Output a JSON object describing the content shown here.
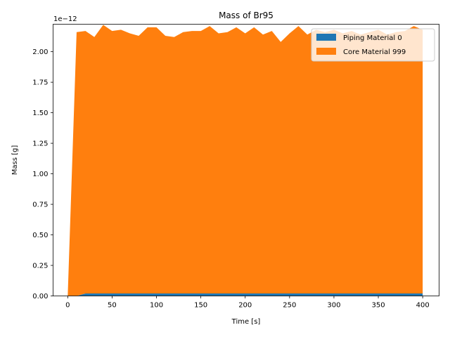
{
  "chart_data": {
    "type": "area",
    "stacked": true,
    "title": "Mass of Br95",
    "xlabel": "Time [s]",
    "ylabel": "Mass [g]",
    "y_offset_text": "1e−12",
    "xlim": [
      -16.5,
      418.5
    ],
    "ylim": [
      0,
      2.225
    ],
    "x_ticks": [
      0,
      50,
      100,
      150,
      200,
      250,
      300,
      350,
      400
    ],
    "x_tick_labels": [
      "0",
      "50",
      "100",
      "150",
      "200",
      "250",
      "300",
      "350",
      "400"
    ],
    "y_ticks": [
      0,
      0.25,
      0.5,
      0.75,
      1.0,
      1.25,
      1.5,
      1.75,
      2.0
    ],
    "y_tick_labels": [
      "0.00",
      "0.25",
      "0.50",
      "0.75",
      "1.00",
      "1.25",
      "1.50",
      "1.75",
      "2.00"
    ],
    "legend_position": "top-right",
    "x": [
      0,
      10,
      20,
      30,
      40,
      50,
      60,
      70,
      80,
      90,
      100,
      110,
      120,
      130,
      140,
      150,
      160,
      170,
      180,
      190,
      200,
      210,
      220,
      230,
      240,
      250,
      260,
      270,
      280,
      290,
      300,
      310,
      320,
      330,
      340,
      350,
      360,
      370,
      380,
      390,
      400
    ],
    "series": [
      {
        "name": "Piping Material 0",
        "color": "#1f77b4",
        "values": [
          0,
          0,
          0.02,
          0.02,
          0.02,
          0.02,
          0.02,
          0.02,
          0.02,
          0.02,
          0.02,
          0.02,
          0.02,
          0.02,
          0.02,
          0.02,
          0.02,
          0.02,
          0.02,
          0.02,
          0.02,
          0.02,
          0.02,
          0.02,
          0.02,
          0.02,
          0.02,
          0.02,
          0.02,
          0.02,
          0.02,
          0.02,
          0.02,
          0.02,
          0.02,
          0.02,
          0.02,
          0.02,
          0.02,
          0.02,
          0.02
        ]
      },
      {
        "name": "Core Material 999",
        "color": "#ff7f0e",
        "values": [
          0,
          2.16,
          2.15,
          2.1,
          2.2,
          2.15,
          2.16,
          2.13,
          2.11,
          2.18,
          2.18,
          2.11,
          2.1,
          2.14,
          2.15,
          2.15,
          2.19,
          2.13,
          2.14,
          2.18,
          2.13,
          2.18,
          2.12,
          2.15,
          2.06,
          2.13,
          2.19,
          2.12,
          2.16,
          2.14,
          2.16,
          2.13,
          2.15,
          2.12,
          2.14,
          2.16,
          2.12,
          2.14,
          2.15,
          2.19,
          2.16
        ]
      }
    ]
  }
}
